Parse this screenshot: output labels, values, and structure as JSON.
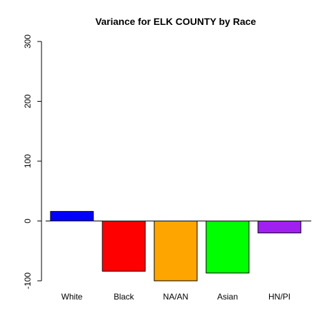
{
  "chart_data": {
    "type": "bar",
    "title": "Variance for ELK COUNTY by Race",
    "xlabel": "",
    "ylabel": "",
    "categories": [
      "White",
      "Black",
      "NA/AN",
      "Asian",
      "HN/PI"
    ],
    "values": [
      16,
      -84,
      -100,
      -87,
      -20
    ],
    "colors": [
      "#0000FF",
      "#FF0000",
      "#FFA500",
      "#00FF00",
      "#A020F0"
    ],
    "ylim": [
      -100,
      300
    ],
    "yticks": [
      -100,
      0,
      100,
      200,
      300
    ],
    "ytick_labels": [
      "-100",
      "0",
      "100",
      "200",
      "300"
    ],
    "zero_line": true,
    "grid": false,
    "legend": "none"
  }
}
